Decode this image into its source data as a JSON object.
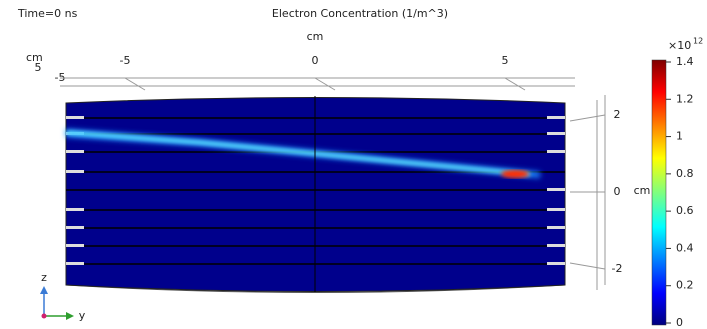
{
  "chart_data": {
    "type": "surface",
    "time_label": "Time=0 ns",
    "title": "Electron Concentration (1/m^3)",
    "top_axis": {
      "label": "cm",
      "ticks": [
        -5,
        0,
        5
      ]
    },
    "left_axis": {
      "label": "cm",
      "ticks": [
        5,
        -5
      ]
    },
    "right_axis": {
      "label": "cm",
      "ticks": [
        2,
        0,
        -2
      ]
    },
    "colorbar": {
      "multiplier": "×10",
      "exponent": "12",
      "clim": [
        0,
        1.4
      ],
      "ticks": [
        0,
        0.2,
        0.4,
        0.6,
        0.8,
        1,
        1.2,
        1.4
      ]
    },
    "triad": {
      "vertical": "z",
      "horizontal": "y"
    }
  }
}
